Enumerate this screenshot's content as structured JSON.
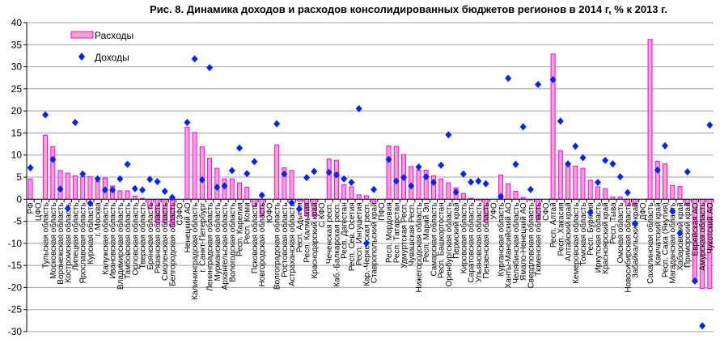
{
  "chart_data": {
    "type": "bar",
    "title": "Рис. 8. Динамика доходов и расходов консолидированных бюджетов регионов в 2014 г, % к 2013 г.",
    "xlabel": "",
    "ylabel": "",
    "ylim": [
      -30,
      40
    ],
    "yticks": [
      40,
      35,
      30,
      25,
      20,
      15,
      10,
      5,
      0,
      -5,
      -10,
      -15,
      -20,
      -25,
      -30
    ],
    "grid": true,
    "legend_position": "top-left",
    "colors": {
      "bar_fill": "#f7a1cc",
      "bar_stroke": "#ff00ff",
      "marker": "#0022ee",
      "grid": "#a0a0a0"
    },
    "categories": [
      "РФ",
      "ЦФО",
      "Тульская область",
      "Московская область",
      "Воронежская область",
      "Костромская область",
      "Липецкая область",
      "Ярославская область",
      "Курская область",
      "г. Москва",
      "Калужская область",
      "Ивановская область",
      "Владимирская область",
      "Тамбовская область",
      "Орловская область",
      "Тверская область",
      "Брянская область",
      "Рязанская область",
      "Смоленская область",
      "Белгородская область",
      "СЗФО",
      "Ненецкий АО",
      "Калининградская область",
      "г. Санкт-Петербург",
      "Ленинградская область",
      "Мурманская область",
      "Архангельская область",
      "Вологодская область",
      "Респ. Карелия",
      "Респ. Коми",
      "Псковская область",
      "Новгородская область",
      "ЮФО",
      "Волгоградская область",
      "Ростовская область",
      "Астраханская область",
      "Респ. Адыгея",
      "Респ. Калмыкия",
      "Краснодарский край",
      "С КФО",
      "Чеченская респ.",
      "Каб.-Балкарская респ.",
      "Респ. Дагестан",
      "Респ. Сев. Осетия",
      "Респ. Ингушетия",
      "Кар.-Черкесская респ.",
      "Ставропольский край",
      "ПФО",
      "Респ. Мордовия",
      "Респ. Татарстан",
      "Удмуртская Респ.",
      "Чувашская Респ.",
      "Нижегородская область",
      "Респ. Марий Эл",
      "Самарская область",
      "Респ. Башкортостан",
      "Оренбургская область",
      "Пермский край",
      "Кировская область",
      "Саратовская область",
      "Ульяновская область",
      "Пензенская область",
      "УФО",
      "Курганская область",
      "Ханты-Мансийский АО",
      "Челябинская область",
      "Ямало-Ненецкий АО",
      "Свердловская область",
      "Тюменская область",
      "СФО",
      "Респ. Алтай",
      "Респ. Хакасия",
      "Алтайский край",
      "Кемеровская область",
      "Томская область",
      "Респ. Бурятия",
      "Иркутская область",
      "Красноярский край",
      "Респ. Тыва",
      "Омская область",
      "Новосибирская область",
      "Забайкальский край",
      "ДФО",
      "Сахалинская область",
      "Камчатский край",
      "Респ. Саха (Якутия)",
      "Магаданская область",
      "Хабаровский край",
      "Приморский край",
      "Еврейская АО",
      "Амурская область",
      "Чукотский АО"
    ],
    "series": [
      {
        "name": "Расходы",
        "kind": "bar",
        "values": [
          4.6,
          null,
          14.5,
          11.9,
          6.5,
          5.9,
          5.3,
          5.1,
          5.1,
          4.0,
          4.8,
          3.0,
          1.9,
          1.9,
          0.7,
          0.2,
          -2.0,
          -5.4,
          -5.4,
          -6.3,
          null,
          16.3,
          15.1,
          11.9,
          9.3,
          7.0,
          4.6,
          4.6,
          3.7,
          2.7,
          -1.7,
          -3.8,
          null,
          12.3,
          7.1,
          6.5,
          -0.4,
          -3.8,
          -3.8,
          null,
          9.1,
          8.8,
          3.3,
          2.8,
          1.0,
          0.8,
          -0.7,
          null,
          12.1,
          12.0,
          10.1,
          7.4,
          6.6,
          6.6,
          5.3,
          4.6,
          3.7,
          2.6,
          1.3,
          0.2,
          -0.2,
          -5.2,
          null,
          5.5,
          3.5,
          1.8,
          0.4,
          -0.2,
          -4.5,
          null,
          32.9,
          11.0,
          7.9,
          7.5,
          7.0,
          4.3,
          2.8,
          2.4,
          0.5,
          0.5,
          -1.5,
          -1.6,
          null,
          36.2,
          8.6,
          8.0,
          3.1,
          2.9,
          -1.3,
          -18.9,
          -20.2,
          -20.2
        ]
      },
      {
        "name": "Доходы",
        "kind": "marker",
        "values": [
          7.1,
          null,
          19.1,
          9.0,
          2.3,
          -2.1,
          17.4,
          5.7,
          -0.9,
          4.6,
          2.1,
          2.1,
          4.6,
          7.9,
          2.4,
          2.1,
          4.5,
          4.0,
          1.8,
          0.4,
          null,
          17.4,
          31.8,
          4.4,
          29.8,
          2.7,
          3.0,
          6.5,
          11.6,
          5.8,
          8.5,
          0.9,
          null,
          17.1,
          5.7,
          -0.8,
          -2.2,
          4.9,
          6.3,
          null,
          6.1,
          5.5,
          4.6,
          3.8,
          20.5,
          -10.0,
          2.2,
          null,
          9.0,
          4.1,
          4.9,
          3.0,
          7.3,
          5.1,
          3.8,
          7.7,
          14.6,
          1.6,
          5.7,
          3.9,
          4.1,
          3.5,
          null,
          0.6,
          27.4,
          7.9,
          16.4,
          2.2,
          26.0,
          null,
          27.1,
          17.7,
          8.0,
          12.0,
          9.4,
          -3.0,
          3.8,
          8.8,
          8.0,
          5.1,
          1.5,
          -5.5,
          null,
          null,
          6.6,
          12.1,
          -2.7,
          -7.7,
          6.2,
          -18.5,
          -28.7,
          16.8
        ]
      }
    ]
  }
}
